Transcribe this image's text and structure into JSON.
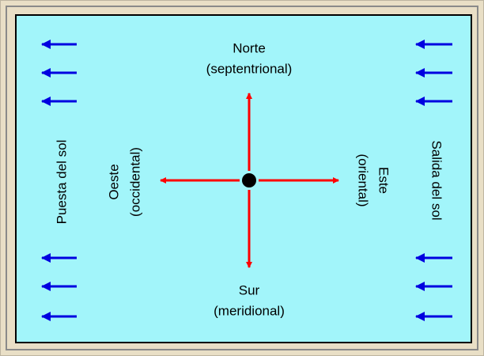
{
  "north": {
    "name": "Norte",
    "sub": "(septentrional)"
  },
  "south": {
    "name": "Sur",
    "sub": "(meridional)"
  },
  "west": {
    "name": "Oeste",
    "sub": "(occidental)"
  },
  "east": {
    "name": "Este",
    "sub": "(oriental)"
  },
  "left_side": "Puesta del sol",
  "right_side": "Salida del sol"
}
